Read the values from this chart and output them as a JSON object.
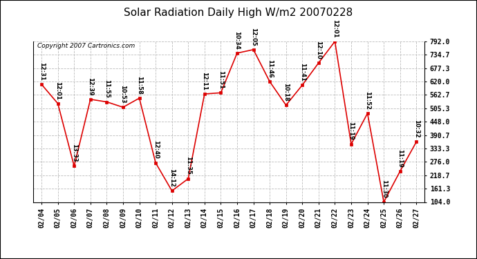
{
  "title": "Solar Radiation Daily High W/m2 20070228",
  "copyright": "Copyright 2007 Cartronics.com",
  "dates": [
    "02/04",
    "02/05",
    "02/06",
    "02/07",
    "02/08",
    "02/09",
    "02/10",
    "02/11",
    "02/12",
    "02/13",
    "02/14",
    "02/15",
    "02/16",
    "02/17",
    "02/18",
    "02/19",
    "02/20",
    "02/21",
    "02/22",
    "02/23",
    "02/24",
    "02/25",
    "02/26",
    "02/27"
  ],
  "values": [
    608,
    526,
    258,
    544,
    533,
    510,
    549,
    272,
    152,
    204,
    567,
    572,
    742,
    757,
    620,
    519,
    605,
    700,
    792,
    352,
    484,
    104,
    236,
    362
  ],
  "times": [
    "12:31",
    "12:01",
    "13:33",
    "12:39",
    "11:55",
    "10:53",
    "11:58",
    "12:40",
    "14:12",
    "11:35",
    "12:11",
    "11:51",
    "10:34",
    "12:05",
    "11:46",
    "10:18",
    "11:41",
    "12:10",
    "12:01",
    "11:19",
    "11:52",
    "11:30",
    "11:19",
    "10:32"
  ],
  "ylim": [
    104.0,
    792.0
  ],
  "yticks": [
    104.0,
    161.3,
    218.7,
    276.0,
    333.3,
    390.7,
    448.0,
    505.3,
    562.7,
    620.0,
    677.3,
    734.7,
    792.0
  ],
  "line_color": "#dd0000",
  "marker_color": "#dd0000",
  "bg_color": "#ffffff",
  "plot_bg_color": "#ffffff",
  "grid_color": "#bbbbbb",
  "title_fontsize": 11,
  "tick_fontsize": 7,
  "time_label_fontsize": 6,
  "copyright_fontsize": 6.5
}
